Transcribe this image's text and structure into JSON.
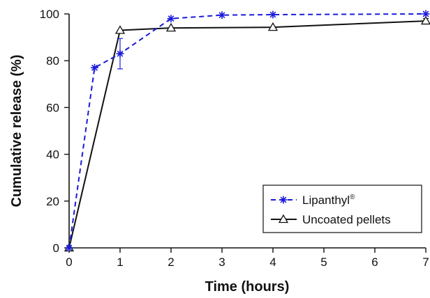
{
  "chart_data": {
    "type": "line",
    "xlabel": "Time (hours)",
    "ylabel": "Cumulative release (%)",
    "xlim": [
      0,
      7
    ],
    "ylim": [
      0,
      100
    ],
    "xticks": [
      "0",
      "1",
      "2",
      "3",
      "4",
      "5",
      "6",
      "7"
    ],
    "yticks": [
      "0",
      "20",
      "40",
      "60",
      "80",
      "100"
    ],
    "grid": false,
    "legend_position": "bottom-right",
    "series": [
      {
        "name": "Lipanthyl",
        "name_superscript": "®",
        "color": "#1a1adb",
        "line_style": "dashed",
        "marker": "asterisk",
        "x": [
          0,
          0.5,
          1,
          2,
          3,
          4,
          7
        ],
        "y": [
          0,
          77,
          83,
          98,
          99.5,
          99.7,
          100
        ],
        "error": [
          0,
          0,
          6.5,
          0,
          0,
          0,
          0
        ]
      },
      {
        "name": "Uncoated pellets",
        "color": "#111111",
        "line_style": "solid",
        "marker": "triangle",
        "x": [
          0,
          1,
          2,
          4,
          7
        ],
        "y": [
          0,
          93,
          94,
          94.3,
          97
        ],
        "error": [
          0,
          0,
          0,
          0,
          1
        ]
      }
    ]
  }
}
